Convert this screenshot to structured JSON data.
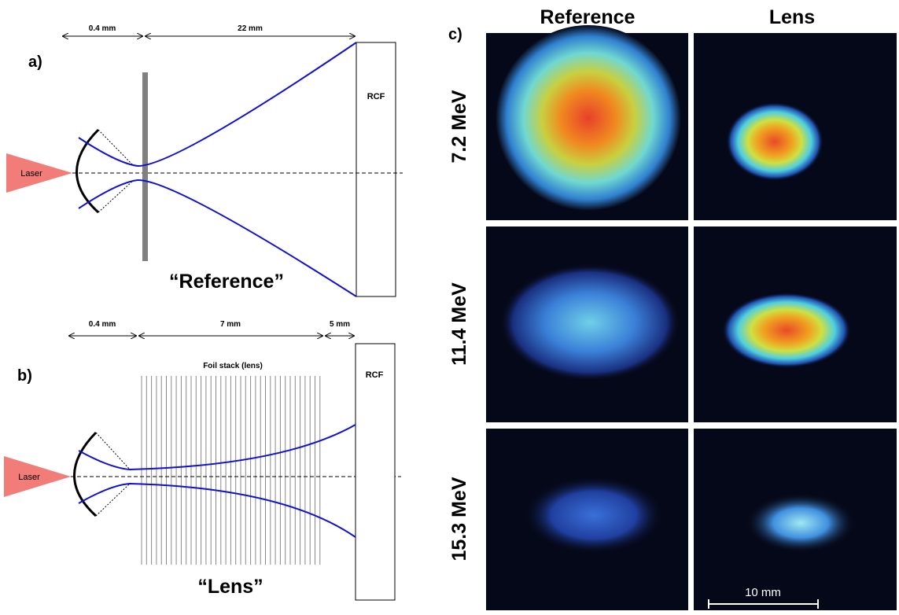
{
  "panel_a": {
    "label": "a)",
    "dimensions": [
      "0.4 mm",
      "22 mm"
    ],
    "laser": "Laser",
    "detector": "RCF",
    "caption": "“Reference”"
  },
  "panel_b": {
    "label": "b)",
    "dimensions": [
      "0.4 mm",
      "7 mm",
      "5 mm"
    ],
    "lens_label": "Foil stack (lens)",
    "laser": "Laser",
    "detector": "RCF",
    "caption": "“Lens”"
  },
  "panel_c": {
    "label": "c)",
    "columns": [
      "Reference",
      "Lens"
    ],
    "rows": [
      "7.2 MeV",
      "11.4 MeV",
      "15.3 MeV"
    ],
    "scale_bar": "10 mm"
  }
}
